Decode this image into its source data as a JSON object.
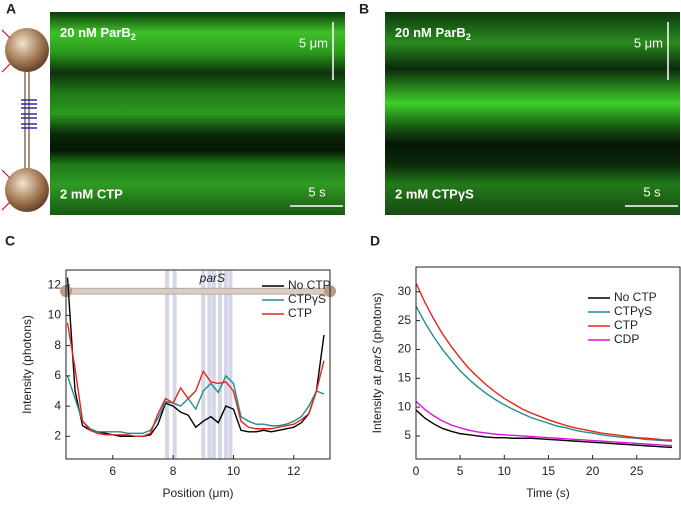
{
  "panels": [
    {
      "label": "A",
      "protein": "20 nM ParB",
      "protein_subscript": "2",
      "length_scale": "5 μm",
      "nucleotide": "2 mM CTP",
      "time_scale": "5 s"
    },
    {
      "label": "B",
      "protein": "20 nM ParB",
      "protein_subscript": "2",
      "length_scale": "5 μm",
      "nucleotide": "2 mM CTPγS",
      "time_scale": "5 s"
    }
  ],
  "chart_data": [
    {
      "type": "line",
      "panel": "C",
      "xlabel": "Position (μm)",
      "ylabel": "Intensity (photons)",
      "annotation": "parS",
      "xlim": [
        4.45,
        13.2
      ],
      "xticks": [
        6,
        8,
        10,
        12
      ],
      "ylim": [
        0.5,
        13
      ],
      "yticks": [
        2,
        4,
        6,
        8,
        10,
        12
      ],
      "pars_sites": [
        7.8,
        8.05,
        9.0,
        9.2,
        9.35,
        9.55,
        9.75,
        9.9
      ],
      "x": [
        4.5,
        4.75,
        5,
        5.25,
        5.5,
        5.75,
        6,
        6.25,
        6.5,
        6.75,
        7,
        7.25,
        7.5,
        7.75,
        8,
        8.25,
        8.5,
        8.75,
        9,
        9.25,
        9.5,
        9.75,
        10,
        10.25,
        10.5,
        10.75,
        11,
        11.25,
        11.5,
        11.75,
        12,
        12.25,
        12.5,
        12.75,
        13
      ],
      "legend": "upper right",
      "series": [
        {
          "name": "No CTP",
          "color": "#000000",
          "values": [
            12.5,
            5,
            2.7,
            2.4,
            2.3,
            2.2,
            2.1,
            2.0,
            2.0,
            2.0,
            2.0,
            2.1,
            2.8,
            4.2,
            4.0,
            3.6,
            3.4,
            2.6,
            3.0,
            3.3,
            2.9,
            4.0,
            3.8,
            2.4,
            2.3,
            2.3,
            2.4,
            2.3,
            2.4,
            2.5,
            2.6,
            2.9,
            3.5,
            5,
            8.7
          ]
        },
        {
          "name": "CTPγS",
          "color": "#1f8f8a",
          "values": [
            6,
            4.5,
            3,
            2.5,
            2.3,
            2.3,
            2.3,
            2.3,
            2.2,
            2.2,
            2.2,
            2.4,
            3.2,
            4.3,
            4.2,
            4.0,
            4.5,
            3.8,
            5.0,
            5.5,
            4.9,
            6.0,
            5.5,
            3.3,
            3.0,
            2.8,
            2.8,
            2.7,
            2.7,
            2.8,
            3.0,
            3.3,
            4.0,
            5,
            4.8
          ]
        },
        {
          "name": "CTP",
          "color": "#e8231c",
          "values": [
            9.5,
            6.5,
            3,
            2.4,
            2.2,
            2.1,
            2.1,
            2.1,
            2.1,
            2.0,
            2.0,
            2.2,
            3.5,
            4.5,
            4.2,
            5.2,
            4.5,
            5.0,
            6.3,
            5.6,
            5.5,
            5.6,
            5.0,
            3.0,
            2.6,
            2.5,
            2.5,
            2.5,
            2.6,
            2.7,
            2.8,
            3.1,
            3.5,
            5,
            7
          ]
        }
      ]
    },
    {
      "type": "line",
      "panel": "D",
      "xlabel": "Time (s)",
      "ylabel_start": "Intensity at ",
      "ylabel_em": "parS",
      "ylabel_end": " (photons)",
      "xlim": [
        0,
        29.9
      ],
      "xticks": [
        0,
        5,
        10,
        15,
        20,
        25
      ],
      "ylim": [
        1,
        34.3
      ],
      "yticks": [
        5,
        10,
        15,
        20,
        25,
        30
      ],
      "x": [
        0,
        1,
        2,
        3,
        4,
        5,
        6,
        7,
        8,
        9,
        10,
        11,
        12,
        13,
        14,
        15,
        16,
        17,
        18,
        19,
        20,
        21,
        22,
        23,
        24,
        25,
        26,
        27,
        28,
        29
      ],
      "legend": "upper right",
      "series": [
        {
          "name": "No CTP",
          "color": "#000000",
          "values": [
            9.5,
            8.1,
            7.1,
            6.3,
            5.8,
            5.4,
            5.2,
            5.0,
            4.8,
            4.7,
            4.7,
            4.6,
            4.6,
            4.6,
            4.5,
            4.4,
            4.3,
            4.2,
            4.1,
            4.0,
            3.9,
            3.8,
            3.7,
            3.6,
            3.5,
            3.4,
            3.3,
            3.2,
            3.1,
            3.0
          ]
        },
        {
          "name": "CTPγS",
          "color": "#1f8f8a",
          "values": [
            27.5,
            24.7,
            22.2,
            20.0,
            18.1,
            16.3,
            14.8,
            13.5,
            12.3,
            11.3,
            10.4,
            9.6,
            8.9,
            8.2,
            7.7,
            7.2,
            6.7,
            6.4,
            6.0,
            5.7,
            5.5,
            5.2,
            5.0,
            4.8,
            4.7,
            4.6,
            4.4,
            4.3,
            4.2,
            4.1
          ]
        },
        {
          "name": "CTP",
          "color": "#e8231c",
          "values": [
            31.5,
            28.2,
            25.3,
            22.7,
            20.5,
            18.5,
            16.7,
            15.2,
            13.8,
            12.6,
            11.5,
            10.6,
            9.7,
            9.0,
            8.4,
            7.8,
            7.3,
            6.8,
            6.4,
            6.1,
            5.8,
            5.5,
            5.3,
            5.1,
            4.9,
            4.7,
            4.6,
            4.5,
            4.3,
            4.3
          ]
        },
        {
          "name": "CDP",
          "color": "#e010e0",
          "values": [
            11,
            9.6,
            8.5,
            7.6,
            6.9,
            6.4,
            6.0,
            5.7,
            5.5,
            5.3,
            5.2,
            5.1,
            5.0,
            4.9,
            4.8,
            4.7,
            4.6,
            4.5,
            4.4,
            4.3,
            4.2,
            4.1,
            4.0,
            3.9,
            3.8,
            3.7,
            3.6,
            3.5,
            3.4,
            3.3
          ]
        }
      ]
    }
  ]
}
